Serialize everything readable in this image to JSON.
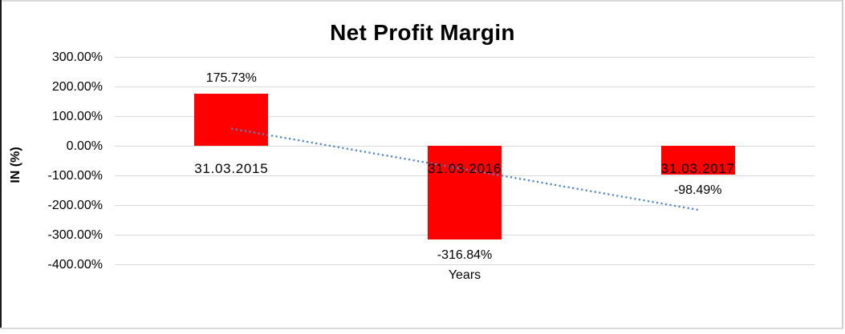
{
  "chart_data": {
    "type": "bar",
    "title": "Net Profit Margin",
    "xlabel": "Years",
    "ylabel": "IN (%)",
    "categories": [
      "31.03.2015",
      "31.03.2016",
      "31.03.2017"
    ],
    "values": [
      175.73,
      -316.84,
      -98.49
    ],
    "data_labels": [
      "175.73%",
      "-316.84%",
      "-98.49%"
    ],
    "ytick_values": [
      300,
      200,
      100,
      0,
      -100,
      -200,
      -300,
      -400
    ],
    "ytick_labels": [
      "300.00%",
      "200.00%",
      "100.00%",
      "0.00%",
      "-100.00%",
      "-200.00%",
      "-300.00%",
      "-400.00%"
    ],
    "ylim": [
      -400,
      300
    ],
    "grid": true,
    "legend": "none",
    "bar_color": "#FF0000",
    "trendline": {
      "type": "linear",
      "style": "dotted",
      "color": "#4E87C8",
      "start_value": 58,
      "end_value": -216
    }
  }
}
